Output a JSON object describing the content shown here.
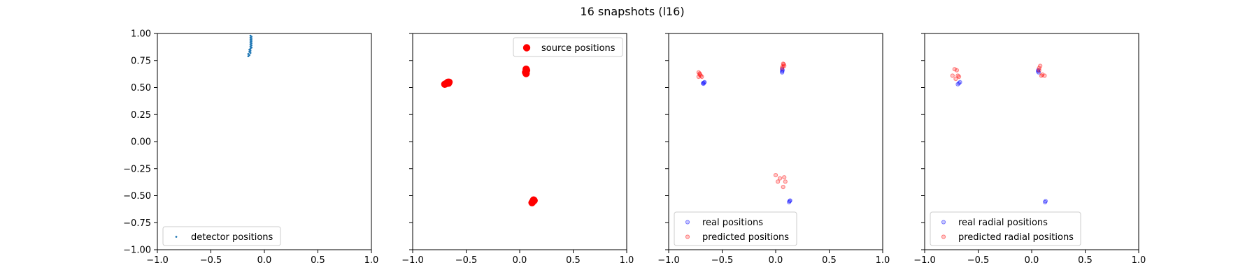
{
  "figure_title": "16 snapshots (l16)",
  "chart_data": [
    {
      "type": "scatter",
      "title": "",
      "xlabel": "",
      "ylabel": "",
      "xlim": [
        -1,
        1
      ],
      "ylim": [
        -1,
        1
      ],
      "xticks": [
        "−1.0",
        "−0.5",
        "0.0",
        "0.5",
        "1.0"
      ],
      "yticks": [
        "−1.00",
        "−0.75",
        "−0.50",
        "−0.25",
        "0.00",
        "0.25",
        "0.50",
        "0.75",
        "1.00"
      ],
      "show_y_tick_labels": true,
      "grid": false,
      "legend": "lower left",
      "series": [
        {
          "name": "detector positions",
          "color": "#1f77b4",
          "marker": "point",
          "points": [
            [
              -0.13,
              0.98
            ],
            [
              -0.12,
              0.97
            ],
            [
              -0.13,
              0.96
            ],
            [
              -0.12,
              0.95
            ],
            [
              -0.13,
              0.94
            ],
            [
              -0.12,
              0.93
            ],
            [
              -0.13,
              0.92
            ],
            [
              -0.12,
              0.91
            ],
            [
              -0.13,
              0.9
            ],
            [
              -0.12,
              0.89
            ],
            [
              -0.13,
              0.88
            ],
            [
              -0.12,
              0.87
            ],
            [
              -0.13,
              0.86
            ],
            [
              -0.14,
              0.85
            ],
            [
              -0.13,
              0.84
            ],
            [
              -0.14,
              0.83
            ],
            [
              -0.13,
              0.82
            ],
            [
              -0.15,
              0.81
            ],
            [
              -0.14,
              0.8
            ],
            [
              -0.15,
              0.79
            ]
          ]
        }
      ]
    },
    {
      "type": "scatter",
      "title": "",
      "xlabel": "",
      "ylabel": "",
      "xlim": [
        -1,
        1
      ],
      "ylim": [
        -1,
        1
      ],
      "xticks": [
        "−1.0",
        "−0.5",
        "0.0",
        "0.5",
        "1.0"
      ],
      "yticks": [],
      "show_y_tick_labels": false,
      "grid": false,
      "legend": "upper right",
      "series": [
        {
          "name": "source positions",
          "color": "#ff0000",
          "marker": "large-circle",
          "points": [
            [
              -0.7,
              0.53
            ],
            [
              -0.68,
              0.54
            ],
            [
              -0.67,
              0.55
            ],
            [
              -0.66,
              0.55
            ],
            [
              -0.69,
              0.535
            ],
            [
              -0.675,
              0.545
            ],
            [
              -0.665,
              0.54
            ],
            [
              0.06,
              0.67
            ],
            [
              0.06,
              0.65
            ],
            [
              0.06,
              0.63
            ],
            [
              0.065,
              0.66
            ],
            [
              0.055,
              0.64
            ],
            [
              0.12,
              -0.56
            ],
            [
              0.13,
              -0.54
            ],
            [
              0.125,
              -0.55
            ],
            [
              0.115,
              -0.565
            ],
            [
              0.135,
              -0.545
            ]
          ]
        }
      ]
    },
    {
      "type": "scatter",
      "title": "",
      "xlabel": "",
      "ylabel": "",
      "xlim": [
        -1,
        1
      ],
      "ylim": [
        -1,
        1
      ],
      "xticks": [
        "−1.0",
        "−0.5",
        "0.0",
        "0.5",
        "1.0"
      ],
      "yticks": [],
      "show_y_tick_labels": false,
      "grid": false,
      "legend": "lower left",
      "series": [
        {
          "name": "real positions",
          "color": "#0000ff",
          "marker": "small-circle-transparent",
          "points": [
            [
              -0.68,
              0.54
            ],
            [
              -0.67,
              0.545
            ],
            [
              -0.665,
              0.55
            ],
            [
              -0.675,
              0.535
            ],
            [
              0.06,
              0.67
            ],
            [
              0.06,
              0.65
            ],
            [
              0.06,
              0.64
            ],
            [
              0.065,
              0.66
            ],
            [
              0.13,
              -0.55
            ],
            [
              0.125,
              -0.56
            ],
            [
              0.135,
              -0.545
            ]
          ]
        },
        {
          "name": "predicted positions",
          "color": "#ff0000",
          "marker": "small-circle-transparent",
          "points": [
            [
              -0.72,
              0.64
            ],
            [
              -0.71,
              0.62
            ],
            [
              -0.7,
              0.61
            ],
            [
              -0.72,
              0.6
            ],
            [
              -0.69,
              0.6
            ],
            [
              -0.71,
              0.63
            ],
            [
              0.07,
              0.72
            ],
            [
              0.08,
              0.7
            ],
            [
              0.06,
              0.68
            ],
            [
              0.075,
              0.715
            ],
            [
              0.065,
              0.695
            ],
            [
              0.0,
              -0.31
            ],
            [
              0.08,
              -0.33
            ],
            [
              0.02,
              -0.37
            ],
            [
              0.09,
              -0.37
            ],
            [
              0.07,
              -0.42
            ],
            [
              0.04,
              -0.34
            ]
          ]
        }
      ]
    },
    {
      "type": "scatter",
      "title": "",
      "xlabel": "",
      "ylabel": "",
      "xlim": [
        -1,
        1
      ],
      "ylim": [
        -1,
        1
      ],
      "xticks": [
        "−1.0",
        "−0.5",
        "0.0",
        "0.5",
        "1.0"
      ],
      "yticks": [],
      "show_y_tick_labels": false,
      "grid": false,
      "legend": "lower left",
      "series": [
        {
          "name": "real radial positions",
          "color": "#0000ff",
          "marker": "small-circle-transparent",
          "points": [
            [
              -0.68,
              0.54
            ],
            [
              -0.67,
              0.55
            ],
            [
              -0.69,
              0.53
            ],
            [
              0.06,
              0.66
            ],
            [
              0.065,
              0.64
            ],
            [
              0.06,
              0.65
            ],
            [
              0.13,
              -0.55
            ],
            [
              0.125,
              -0.56
            ]
          ]
        },
        {
          "name": "predicted radial positions",
          "color": "#ff0000",
          "marker": "small-circle-transparent",
          "points": [
            [
              -0.74,
              0.61
            ],
            [
              -0.72,
              0.67
            ],
            [
              -0.7,
              0.66
            ],
            [
              -0.71,
              0.58
            ],
            [
              -0.68,
              0.6
            ],
            [
              -0.69,
              0.61
            ],
            [
              0.07,
              0.68
            ],
            [
              0.08,
              0.7
            ],
            [
              0.09,
              0.61
            ],
            [
              0.12,
              0.61
            ],
            [
              0.1,
              0.62
            ],
            [
              0.07,
              0.66
            ]
          ]
        }
      ]
    }
  ]
}
